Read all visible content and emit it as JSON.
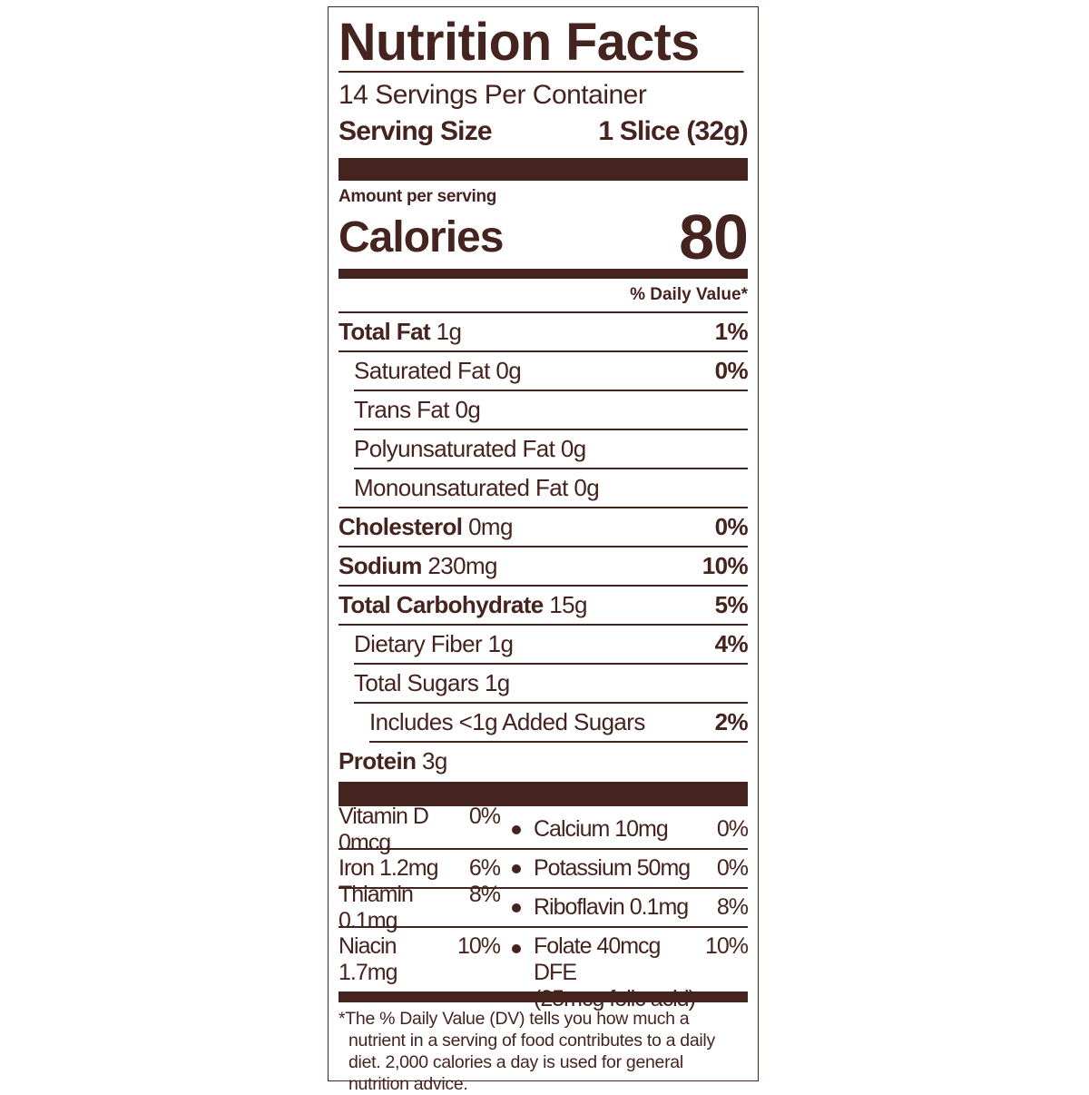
{
  "title": "Nutrition Facts",
  "servings_per_container": "14 Servings Per Container",
  "serving_size": {
    "label": "Serving Size",
    "value": "1 Slice (32g)"
  },
  "amount_per_serving": "Amount per serving",
  "calories": {
    "label": "Calories",
    "value": "80"
  },
  "daily_value_header": "% Daily Value*",
  "nutrients": [
    {
      "name": "Total Fat",
      "amount": "1g",
      "dv": "1%"
    },
    {
      "name": "Saturated Fat 0g",
      "amount": "",
      "dv": "0%"
    },
    {
      "name": "Trans Fat 0g",
      "amount": "",
      "dv": ""
    },
    {
      "name": "Polyunsaturated Fat 0g",
      "amount": "",
      "dv": ""
    },
    {
      "name": "Monounsaturated Fat 0g",
      "amount": "",
      "dv": ""
    },
    {
      "name": "Cholesterol",
      "amount": "0mg",
      "dv": "0%"
    },
    {
      "name": "Sodium",
      "amount": "230mg",
      "dv": "10%"
    },
    {
      "name": "Total Carbohydrate",
      "amount": "15g",
      "dv": "5%"
    },
    {
      "name": "Dietary Fiber 1g",
      "amount": "",
      "dv": "4%"
    },
    {
      "name": "Total Sugars 1g",
      "amount": "",
      "dv": ""
    },
    {
      "name": "Includes <1g Added Sugars",
      "amount": "",
      "dv": "2%"
    },
    {
      "name": "Protein",
      "amount": "3g",
      "dv": ""
    }
  ],
  "vitamins": [
    [
      {
        "name": "Vitamin D 0mcg",
        "dv": "0%"
      },
      {
        "name": "Calcium 10mg",
        "dv": "0%"
      }
    ],
    [
      {
        "name": "Iron 1.2mg",
        "dv": "6%"
      },
      {
        "name": "Potassium 50mg",
        "dv": "0%"
      }
    ],
    [
      {
        "name": "Thiamin 0.1mg",
        "dv": "8%"
      },
      {
        "name": "Riboflavin 0.1mg",
        "dv": "8%"
      }
    ],
    [
      {
        "name": "Niacin 1.7mg",
        "dv": "10%"
      },
      {
        "name": "Folate 40mcg DFE",
        "dv": "10%",
        "note": "(25mcg folic acid)"
      }
    ]
  ],
  "footnote": "*The % Daily Value (DV) tells you how much a nutrient in a serving of food contributes to a daily diet. 2,000 calories a day is used for general nutrition advice.",
  "colors": {
    "ink": "#45231f",
    "background": "#ffffff"
  }
}
